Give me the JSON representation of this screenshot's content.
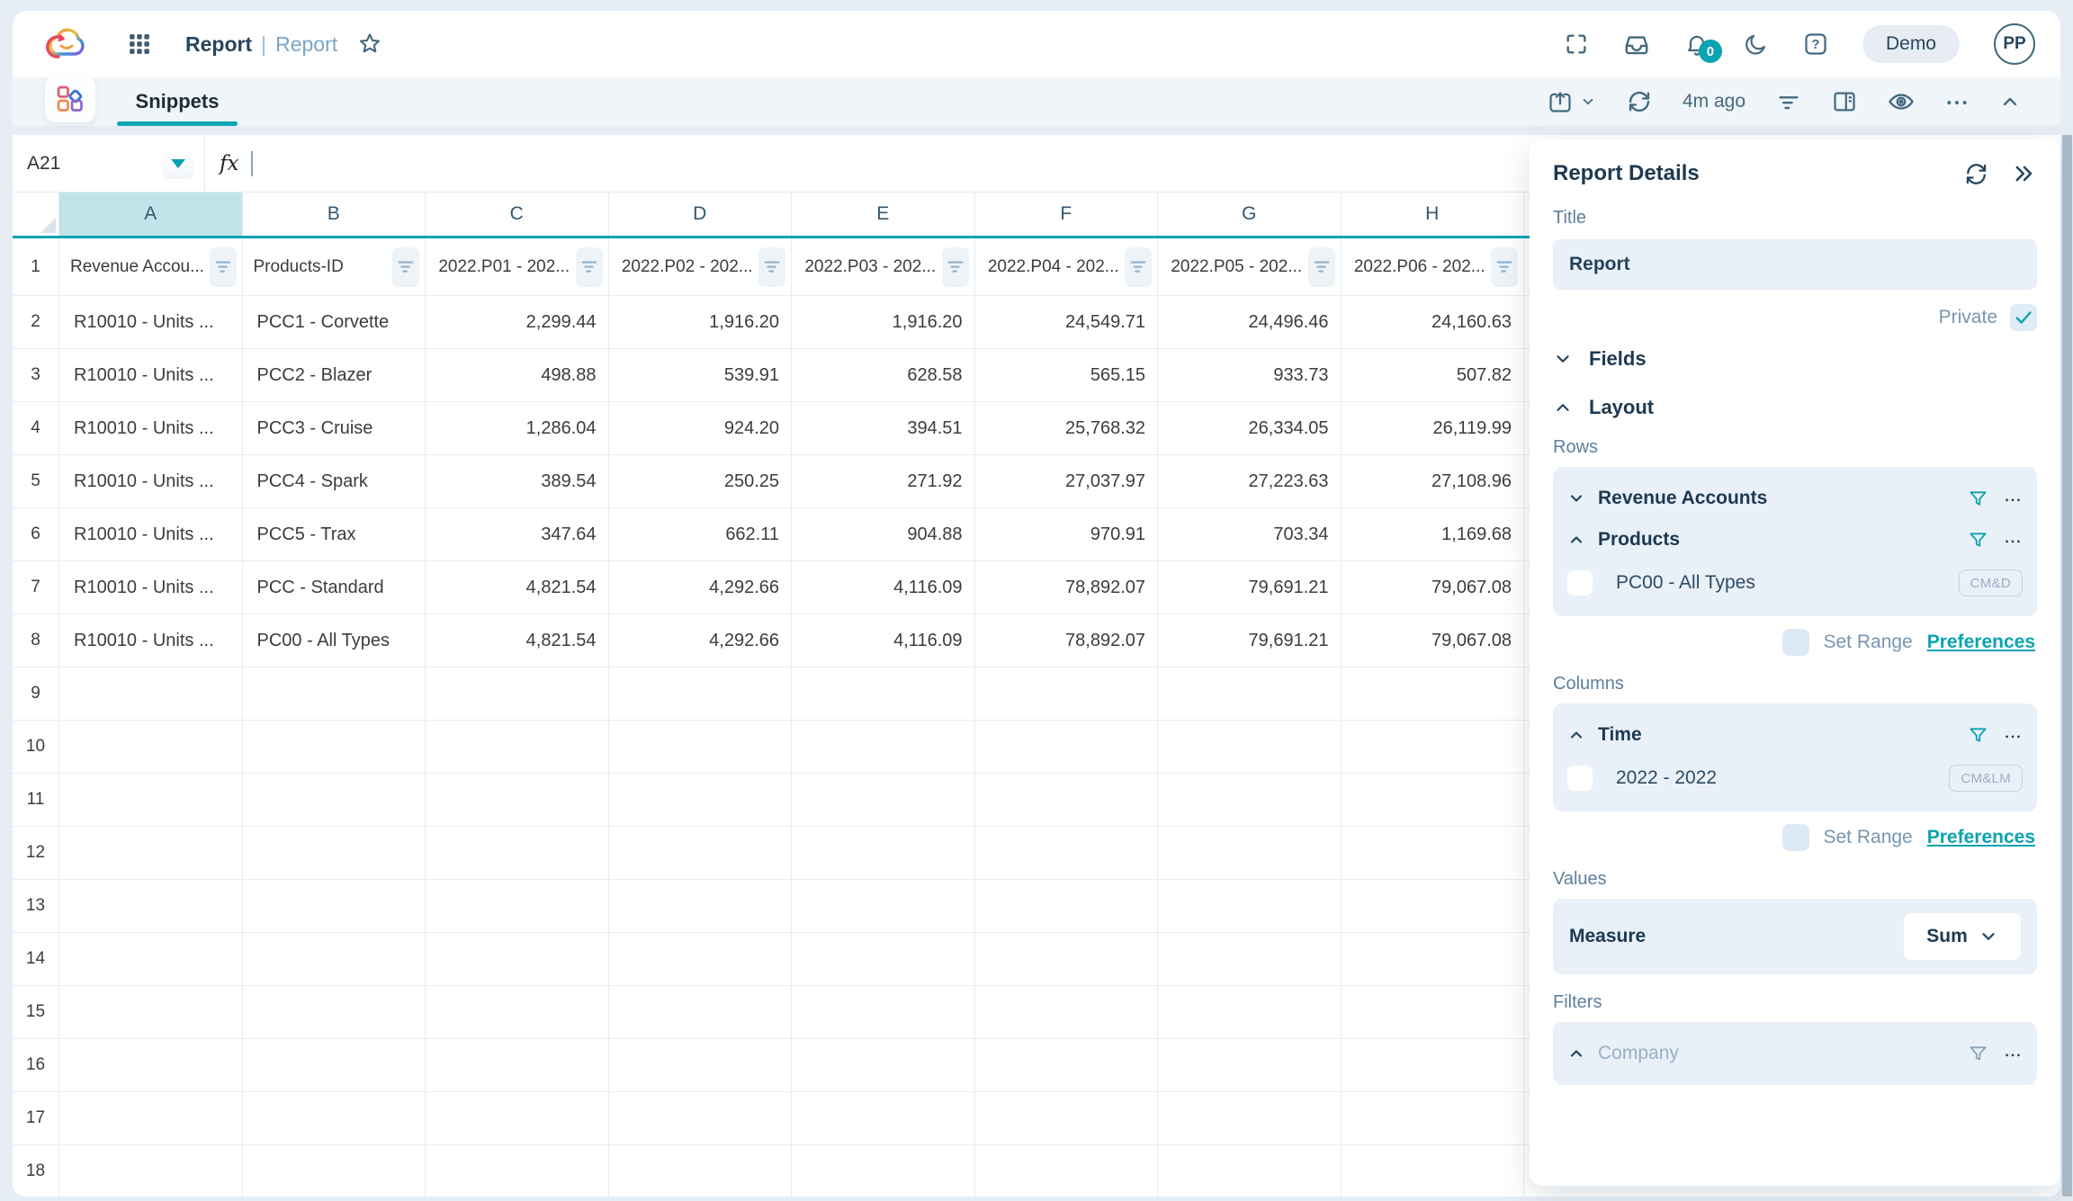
{
  "colors": {
    "accent_teal": "#0aa3b1",
    "selected_column_bg": "#c0e4e9"
  },
  "header": {
    "title_primary": "Report",
    "title_separator": "|",
    "title_secondary": "Report",
    "notification_count": "0",
    "demo_badge": "Demo",
    "avatar_initials": "PP"
  },
  "toolbar": {
    "tab_label": "Snippets",
    "last_refresh": "4m ago"
  },
  "formula_bar": {
    "cell_ref": "A21",
    "fx_label": "fx",
    "formula_value": ""
  },
  "sheet": {
    "column_letters": [
      "A",
      "B",
      "C",
      "D",
      "E",
      "F",
      "G",
      "H"
    ],
    "selected_column": "A",
    "total_rows": 18,
    "header_row": [
      "Revenue Accou...",
      "Products-ID",
      "2022.P01 - 202...",
      "2022.P02 - 202...",
      "2022.P03 - 202...",
      "2022.P04 - 202...",
      "2022.P05 - 202...",
      "2022.P06 - 202..."
    ],
    "rows": [
      [
        "R10010 - Units ...",
        "PCC1 - Corvette",
        "2,299.44",
        "1,916.20",
        "1,916.20",
        "24,549.71",
        "24,496.46",
        "24,160.63"
      ],
      [
        "R10010 - Units ...",
        "PCC2 - Blazer",
        "498.88",
        "539.91",
        "628.58",
        "565.15",
        "933.73",
        "507.82"
      ],
      [
        "R10010 - Units ...",
        "PCC3 - Cruise",
        "1,286.04",
        "924.20",
        "394.51",
        "25,768.32",
        "26,334.05",
        "26,119.99"
      ],
      [
        "R10010 - Units ...",
        "PCC4 - Spark",
        "389.54",
        "250.25",
        "271.92",
        "27,037.97",
        "27,223.63",
        "27,108.96"
      ],
      [
        "R10010 - Units ...",
        "PCC5 - Trax",
        "347.64",
        "662.11",
        "904.88",
        "970.91",
        "703.34",
        "1,169.68"
      ],
      [
        "R10010 - Units ...",
        "PCC - Standard",
        "4,821.54",
        "4,292.66",
        "4,116.09",
        "78,892.07",
        "79,691.21",
        "79,067.08"
      ],
      [
        "R10010 - Units ...",
        "PC00 - All Types",
        "4,821.54",
        "4,292.66",
        "4,116.09",
        "78,892.07",
        "79,691.21",
        "79,067.08"
      ]
    ]
  },
  "panel": {
    "title": "Report Details",
    "title_field": {
      "label": "Title",
      "value": "Report"
    },
    "private": {
      "label": "Private",
      "checked": true
    },
    "fields_section": "Fields",
    "layout_section": "Layout",
    "rows_label": "Rows",
    "rows": {
      "items": [
        {
          "label": "Revenue Accounts"
        },
        {
          "label": "Products"
        }
      ],
      "child": {
        "label": "PC00 - All Types",
        "badge": "CM&D"
      }
    },
    "columns_label": "Columns",
    "columns": {
      "items": [
        {
          "label": "Time"
        }
      ],
      "child": {
        "label": "2022 - 2022",
        "badge": "CM&LM"
      }
    },
    "set_range_label": "Set Range",
    "preferences_label": "Preferences",
    "values_label": "Values",
    "values": {
      "measure_label": "Measure",
      "aggregation": "Sum"
    },
    "filters_label": "Filters",
    "filters": {
      "items": [
        {
          "label": "Company"
        }
      ]
    }
  }
}
